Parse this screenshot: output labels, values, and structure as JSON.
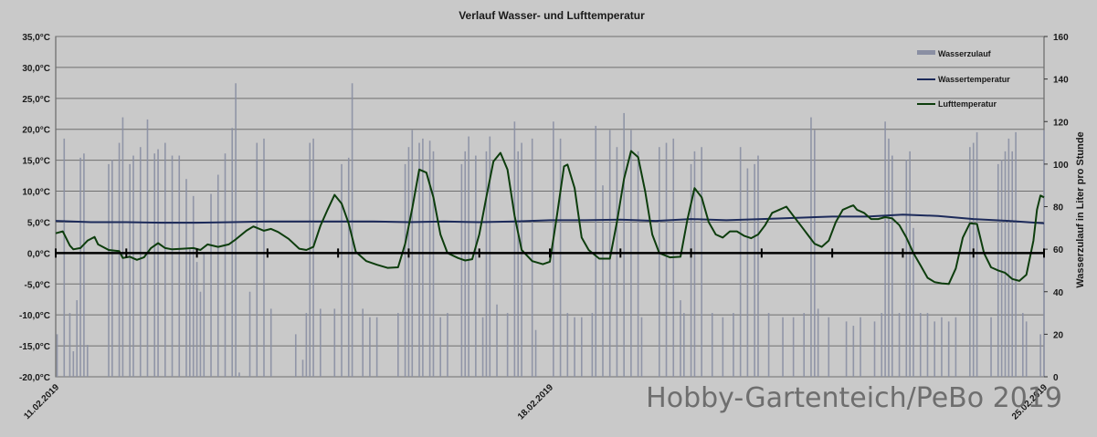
{
  "chart_data": {
    "type": "line",
    "title": "Verlauf Wasser- und Lufttemperatur",
    "y_left": {
      "ylim": [
        -20,
        35
      ],
      "ticks": [
        "35,0°C",
        "30,0°C",
        "25,0°C",
        "20,0°C",
        "15,0°C",
        "10,0°C",
        "5,0°C",
        "0,0°C",
        "-5,0°C",
        "-10,0°C",
        "-15,0°C",
        "-20,0°C"
      ]
    },
    "y_right": {
      "label": "Wasserzulauf in Liter pro Stunde",
      "ylim": [
        0,
        160
      ],
      "ticks": [
        "160",
        "140",
        "120",
        "100",
        "80",
        "60",
        "40",
        "20",
        "0"
      ]
    },
    "x": {
      "start": "11.02.2019",
      "end": "25.02.2019",
      "days": 14,
      "date_labels": [
        {
          "day": 0,
          "text": "11.02.2019"
        },
        {
          "day": 7,
          "text": "18.02.2019"
        },
        {
          "day": 14,
          "text": "25.02.2019"
        }
      ]
    },
    "grid": true,
    "legend_position": "top-right",
    "legend": [
      {
        "name": "Wasserzulauf",
        "kind": "bar",
        "color": "#8a8fa3"
      },
      {
        "name": "Wassertemperatur",
        "kind": "line",
        "color": "#1c2a5a"
      },
      {
        "name": "Lufttemperatur",
        "kind": "line",
        "color": "#0d3d0d"
      }
    ],
    "series": [
      {
        "name": "Wassertemperatur",
        "axis": "left",
        "color": "#1c2a5a",
        "points": [
          [
            0,
            5.2
          ],
          [
            0.5,
            5.0
          ],
          [
            1,
            5.0
          ],
          [
            1.5,
            4.9
          ],
          [
            2,
            4.9
          ],
          [
            2.5,
            5.0
          ],
          [
            3,
            5.1
          ],
          [
            3.5,
            5.1
          ],
          [
            4,
            5.1
          ],
          [
            4.5,
            5.1
          ],
          [
            5,
            5.0
          ],
          [
            5.5,
            5.1
          ],
          [
            6,
            5.0
          ],
          [
            6.5,
            5.1
          ],
          [
            7,
            5.3
          ],
          [
            7.5,
            5.3
          ],
          [
            8,
            5.4
          ],
          [
            8.5,
            5.2
          ],
          [
            9,
            5.5
          ],
          [
            9.5,
            5.3
          ],
          [
            10,
            5.5
          ],
          [
            10.5,
            5.7
          ],
          [
            11,
            5.9
          ],
          [
            11.5,
            5.9
          ],
          [
            12,
            6.2
          ],
          [
            12.5,
            6.0
          ],
          [
            13,
            5.5
          ],
          [
            13.5,
            5.2
          ],
          [
            14,
            4.8
          ]
        ]
      },
      {
        "name": "Lufttemperatur",
        "axis": "left",
        "color": "#0d3d0d",
        "points": [
          [
            0,
            3.2
          ],
          [
            0.1,
            3.5
          ],
          [
            0.2,
            1.2
          ],
          [
            0.25,
            0.6
          ],
          [
            0.35,
            0.8
          ],
          [
            0.45,
            2.0
          ],
          [
            0.55,
            2.6
          ],
          [
            0.6,
            1.4
          ],
          [
            0.75,
            0.5
          ],
          [
            0.9,
            0.3
          ],
          [
            0.95,
            -0.8
          ],
          [
            1.05,
            -0.6
          ],
          [
            1.15,
            -1.1
          ],
          [
            1.25,
            -0.7
          ],
          [
            1.35,
            0.8
          ],
          [
            1.45,
            1.6
          ],
          [
            1.55,
            0.8
          ],
          [
            1.65,
            0.6
          ],
          [
            1.8,
            0.7
          ],
          [
            1.95,
            0.8
          ],
          [
            2.05,
            0.5
          ],
          [
            2.15,
            1.4
          ],
          [
            2.3,
            1.0
          ],
          [
            2.45,
            1.4
          ],
          [
            2.55,
            2.2
          ],
          [
            2.7,
            3.6
          ],
          [
            2.8,
            4.3
          ],
          [
            2.95,
            3.6
          ],
          [
            3.05,
            3.9
          ],
          [
            3.15,
            3.4
          ],
          [
            3.3,
            2.3
          ],
          [
            3.45,
            0.7
          ],
          [
            3.55,
            0.5
          ],
          [
            3.65,
            1.0
          ],
          [
            3.75,
            4.4
          ],
          [
            3.85,
            7.0
          ],
          [
            3.95,
            9.4
          ],
          [
            4.05,
            8.0
          ],
          [
            4.15,
            4.8
          ],
          [
            4.25,
            0.2
          ],
          [
            4.4,
            -1.3
          ],
          [
            4.55,
            -1.9
          ],
          [
            4.7,
            -2.4
          ],
          [
            4.85,
            -2.3
          ],
          [
            4.95,
            1.5
          ],
          [
            5.05,
            7.2
          ],
          [
            5.15,
            13.5
          ],
          [
            5.25,
            13.0
          ],
          [
            5.35,
            9.0
          ],
          [
            5.45,
            3.0
          ],
          [
            5.55,
            0.0
          ],
          [
            5.7,
            -0.8
          ],
          [
            5.8,
            -1.2
          ],
          [
            5.9,
            -1.0
          ],
          [
            6.0,
            3.0
          ],
          [
            6.1,
            9.0
          ],
          [
            6.2,
            14.8
          ],
          [
            6.3,
            16.2
          ],
          [
            6.4,
            13.5
          ],
          [
            6.5,
            6.0
          ],
          [
            6.6,
            0.5
          ],
          [
            6.75,
            -1.3
          ],
          [
            6.9,
            -1.8
          ],
          [
            7.0,
            -1.4
          ],
          [
            7.1,
            6.0
          ],
          [
            7.2,
            14.0
          ],
          [
            7.25,
            14.3
          ],
          [
            7.35,
            10.5
          ],
          [
            7.45,
            2.5
          ],
          [
            7.55,
            0.5
          ],
          [
            7.7,
            -0.9
          ],
          [
            7.85,
            -0.9
          ],
          [
            7.95,
            5.0
          ],
          [
            8.05,
            12.0
          ],
          [
            8.15,
            16.5
          ],
          [
            8.25,
            15.5
          ],
          [
            8.35,
            10.0
          ],
          [
            8.45,
            3.0
          ],
          [
            8.55,
            0.0
          ],
          [
            8.7,
            -0.7
          ],
          [
            8.85,
            -0.6
          ],
          [
            8.95,
            5.5
          ],
          [
            9.05,
            10.5
          ],
          [
            9.15,
            9.0
          ],
          [
            9.25,
            5.0
          ],
          [
            9.35,
            3.0
          ],
          [
            9.45,
            2.5
          ],
          [
            9.55,
            3.5
          ],
          [
            9.65,
            3.5
          ],
          [
            9.75,
            2.8
          ],
          [
            9.85,
            2.4
          ],
          [
            9.95,
            3.0
          ],
          [
            10.05,
            4.5
          ],
          [
            10.15,
            6.5
          ],
          [
            10.25,
            7.0
          ],
          [
            10.35,
            7.5
          ],
          [
            10.45,
            6.0
          ],
          [
            10.55,
            4.5
          ],
          [
            10.65,
            3.0
          ],
          [
            10.75,
            1.5
          ],
          [
            10.85,
            1.0
          ],
          [
            10.95,
            2.0
          ],
          [
            11.05,
            5.0
          ],
          [
            11.15,
            7.0
          ],
          [
            11.25,
            7.5
          ],
          [
            11.3,
            7.7
          ],
          [
            11.35,
            7.0
          ],
          [
            11.45,
            6.5
          ],
          [
            11.55,
            5.5
          ],
          [
            11.65,
            5.5
          ],
          [
            11.75,
            5.8
          ],
          [
            11.85,
            5.6
          ],
          [
            11.95,
            4.5
          ],
          [
            12.05,
            2.5
          ],
          [
            12.15,
            0.0
          ],
          [
            12.25,
            -2.0
          ],
          [
            12.35,
            -4.0
          ],
          [
            12.45,
            -4.7
          ],
          [
            12.55,
            -4.9
          ],
          [
            12.65,
            -5.0
          ],
          [
            12.75,
            -2.5
          ],
          [
            12.85,
            2.5
          ],
          [
            12.95,
            4.8
          ],
          [
            13.05,
            4.7
          ],
          [
            13.15,
            0.0
          ],
          [
            13.25,
            -2.3
          ],
          [
            13.35,
            -2.8
          ],
          [
            13.45,
            -3.2
          ],
          [
            13.55,
            -4.2
          ],
          [
            13.65,
            -4.5
          ],
          [
            13.75,
            -3.5
          ],
          [
            13.85,
            2.0
          ],
          [
            13.9,
            7.0
          ],
          [
            13.95,
            9.3
          ],
          [
            14.0,
            9.0
          ]
        ]
      },
      {
        "name": "Wasserzulauf",
        "axis": "right",
        "color": "#8a8fa3",
        "points": [
          [
            0.02,
            20
          ],
          [
            0.12,
            112
          ],
          [
            0.2,
            30
          ],
          [
            0.25,
            12
          ],
          [
            0.3,
            36
          ],
          [
            0.35,
            103
          ],
          [
            0.4,
            105
          ],
          [
            0.45,
            15
          ],
          [
            0.75,
            100
          ],
          [
            0.8,
            102
          ],
          [
            0.9,
            110
          ],
          [
            0.95,
            122
          ],
          [
            1.05,
            100
          ],
          [
            1.1,
            104
          ],
          [
            1.2,
            108
          ],
          [
            1.3,
            121
          ],
          [
            1.4,
            105
          ],
          [
            1.45,
            107
          ],
          [
            1.55,
            110
          ],
          [
            1.65,
            104
          ],
          [
            1.75,
            104
          ],
          [
            1.85,
            93
          ],
          [
            1.9,
            60
          ],
          [
            1.95,
            85
          ],
          [
            2.0,
            54
          ],
          [
            2.05,
            40
          ],
          [
            2.1,
            58
          ],
          [
            2.2,
            86
          ],
          [
            2.3,
            95
          ],
          [
            2.4,
            105
          ],
          [
            2.5,
            117
          ],
          [
            2.55,
            138
          ],
          [
            2.6,
            2
          ],
          [
            2.75,
            40
          ],
          [
            2.85,
            110
          ],
          [
            2.95,
            112
          ],
          [
            3.05,
            32
          ],
          [
            3.4,
            20
          ],
          [
            3.5,
            8
          ],
          [
            3.55,
            30
          ],
          [
            3.6,
            110
          ],
          [
            3.65,
            112
          ],
          [
            3.75,
            32
          ],
          [
            3.95,
            32
          ],
          [
            4.05,
            100
          ],
          [
            4.15,
            103
          ],
          [
            4.2,
            138
          ],
          [
            4.35,
            32
          ],
          [
            4.45,
            28
          ],
          [
            4.55,
            28
          ],
          [
            4.85,
            30
          ],
          [
            4.95,
            100
          ],
          [
            5.0,
            108
          ],
          [
            5.05,
            116
          ],
          [
            5.15,
            110
          ],
          [
            5.2,
            112
          ],
          [
            5.3,
            111
          ],
          [
            5.35,
            106
          ],
          [
            5.45,
            28
          ],
          [
            5.55,
            30
          ],
          [
            5.75,
            100
          ],
          [
            5.8,
            106
          ],
          [
            5.85,
            113
          ],
          [
            5.95,
            104
          ],
          [
            6.05,
            28
          ],
          [
            6.1,
            106
          ],
          [
            6.15,
            113
          ],
          [
            6.25,
            34
          ],
          [
            6.4,
            30
          ],
          [
            6.5,
            120
          ],
          [
            6.55,
            106
          ],
          [
            6.6,
            110
          ],
          [
            6.75,
            112
          ],
          [
            6.8,
            22
          ],
          [
            7.05,
            120
          ],
          [
            7.15,
            112
          ],
          [
            7.25,
            30
          ],
          [
            7.35,
            28
          ],
          [
            7.45,
            28
          ],
          [
            7.6,
            30
          ],
          [
            7.65,
            118
          ],
          [
            7.75,
            90
          ],
          [
            7.85,
            116
          ],
          [
            7.95,
            108
          ],
          [
            8.05,
            124
          ],
          [
            8.15,
            116
          ],
          [
            8.25,
            106
          ],
          [
            8.3,
            28
          ],
          [
            8.55,
            108
          ],
          [
            8.65,
            110
          ],
          [
            8.75,
            112
          ],
          [
            8.85,
            36
          ],
          [
            8.9,
            30
          ],
          [
            9.0,
            100
          ],
          [
            9.05,
            106
          ],
          [
            9.15,
            108
          ],
          [
            9.3,
            30
          ],
          [
            9.45,
            28
          ],
          [
            9.6,
            30
          ],
          [
            9.7,
            108
          ],
          [
            9.8,
            98
          ],
          [
            9.9,
            100
          ],
          [
            9.95,
            104
          ],
          [
            10.1,
            30
          ],
          [
            10.3,
            28
          ],
          [
            10.45,
            28
          ],
          [
            10.6,
            30
          ],
          [
            10.7,
            122
          ],
          [
            10.75,
            116
          ],
          [
            10.8,
            32
          ],
          [
            10.95,
            28
          ],
          [
            11.2,
            26
          ],
          [
            11.3,
            24
          ],
          [
            11.4,
            28
          ],
          [
            11.6,
            26
          ],
          [
            11.7,
            30
          ],
          [
            11.75,
            120
          ],
          [
            11.8,
            112
          ],
          [
            11.85,
            104
          ],
          [
            11.95,
            30
          ],
          [
            12.05,
            102
          ],
          [
            12.1,
            106
          ],
          [
            12.15,
            70
          ],
          [
            12.25,
            30
          ],
          [
            12.35,
            30
          ],
          [
            12.45,
            26
          ],
          [
            12.55,
            28
          ],
          [
            12.65,
            26
          ],
          [
            12.75,
            28
          ],
          [
            12.95,
            108
          ],
          [
            13.0,
            110
          ],
          [
            13.05,
            115
          ],
          [
            13.25,
            28
          ],
          [
            13.35,
            100
          ],
          [
            13.4,
            102
          ],
          [
            13.45,
            106
          ],
          [
            13.5,
            112
          ],
          [
            13.55,
            106
          ],
          [
            13.6,
            115
          ],
          [
            13.7,
            30
          ],
          [
            13.75,
            26
          ],
          [
            13.95,
            20
          ],
          [
            14.0,
            116
          ]
        ]
      }
    ]
  },
  "watermark": "Hobby-Gartenteich/PeBo 2019"
}
